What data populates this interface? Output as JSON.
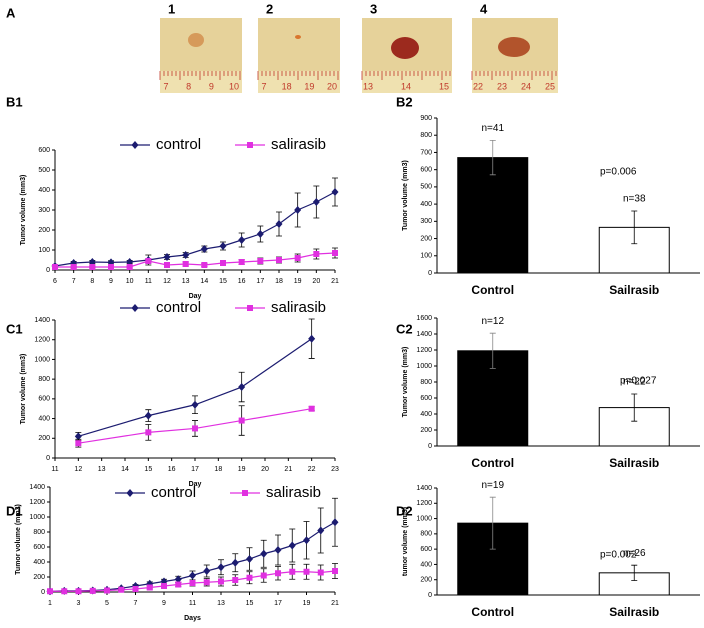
{
  "panel_a": {
    "label": "A",
    "photos": [
      {
        "label": "1",
        "ruler": [
          "7",
          "8",
          "9",
          "10"
        ]
      },
      {
        "label": "2",
        "ruler": [
          "7",
          "18",
          "19",
          "20"
        ]
      },
      {
        "label": "3",
        "ruler": [
          "13",
          "14",
          "15"
        ]
      },
      {
        "label": "4",
        "ruler": [
          "22",
          "23",
          "24",
          "25"
        ]
      }
    ]
  },
  "chart_data": [
    {
      "type": "line",
      "panel": "B1",
      "xlabel": "Day",
      "ylabel": "Tumor volume (mm3)",
      "x": [
        6,
        7,
        8,
        9,
        10,
        11,
        12,
        13,
        14,
        15,
        16,
        17,
        18,
        19,
        20,
        21
      ],
      "xlim": [
        6,
        21
      ],
      "xticks": [
        6,
        7,
        8,
        9,
        10,
        11,
        12,
        13,
        14,
        15,
        16,
        17,
        18,
        19,
        20,
        21
      ],
      "ylim": [
        0,
        600
      ],
      "yticks": [
        0,
        100,
        200,
        300,
        400,
        500,
        600
      ],
      "series": [
        {
          "name": "control",
          "color": "#1c1c70",
          "marker": "diamond",
          "values": [
            20,
            35,
            40,
            38,
            40,
            50,
            65,
            75,
            105,
            120,
            150,
            180,
            230,
            300,
            340,
            390
          ],
          "errors": [
            5,
            8,
            8,
            8,
            8,
            25,
            12,
            12,
            15,
            20,
            35,
            40,
            60,
            85,
            80,
            70
          ]
        },
        {
          "name": "salirasib",
          "color": "#e030e0",
          "marker": "square",
          "values": [
            15,
            15,
            15,
            15,
            15,
            45,
            25,
            30,
            25,
            35,
            40,
            45,
            50,
            60,
            80,
            85
          ],
          "errors": [
            5,
            5,
            5,
            5,
            5,
            10,
            8,
            10,
            8,
            10,
            12,
            15,
            15,
            20,
            25,
            25
          ]
        }
      ]
    },
    {
      "type": "bar",
      "panel": "B2",
      "ylabel": "Tumor volume (mm3)",
      "categories": [
        "Control",
        "Sailrasib"
      ],
      "values": [
        670,
        265
      ],
      "errors": [
        100,
        95
      ],
      "colors": [
        "#000000",
        "#ffffff"
      ],
      "annotations": [
        "n=41",
        "n=38"
      ],
      "p_value": "p=0.006",
      "ylim": [
        0,
        900
      ],
      "yticks": [
        0,
        100,
        200,
        300,
        400,
        500,
        600,
        700,
        800,
        900
      ]
    },
    {
      "type": "line",
      "panel": "C1",
      "xlabel": "Day",
      "ylabel": "Tumor volume (mm3)",
      "x": [
        12,
        15,
        17,
        19,
        22
      ],
      "xlim": [
        11,
        23
      ],
      "xticks": [
        11,
        12,
        13,
        14,
        15,
        16,
        17,
        18,
        19,
        20,
        21,
        22,
        23
      ],
      "ylim": [
        0,
        1400
      ],
      "yticks": [
        0,
        200,
        400,
        600,
        800,
        1000,
        1200,
        1400
      ],
      "series": [
        {
          "name": "control",
          "color": "#1c1c70",
          "marker": "diamond",
          "values": [
            220,
            430,
            540,
            720,
            1210
          ],
          "errors": [
            40,
            60,
            90,
            150,
            200
          ]
        },
        {
          "name": "salirasib",
          "color": "#e030e0",
          "marker": "square",
          "values": [
            150,
            260,
            300,
            380,
            500
          ],
          "errors": [
            40,
            80,
            80,
            150,
            20
          ]
        }
      ]
    },
    {
      "type": "bar",
      "panel": "C2",
      "ylabel": "Tumor volume (mm3)",
      "categories": [
        "Control",
        "Sailrasib"
      ],
      "values": [
        1190,
        480
      ],
      "errors": [
        220,
        170
      ],
      "colors": [
        "#000000",
        "#ffffff"
      ],
      "annotations": [
        "n=12",
        "n=22"
      ],
      "p_value": "p=0.027",
      "ylim": [
        0,
        1600
      ],
      "yticks": [
        0,
        200,
        400,
        600,
        800,
        1000,
        1200,
        1400,
        1600
      ]
    },
    {
      "type": "line",
      "panel": "D1",
      "xlabel": "Days",
      "ylabel": "Tumor volume (mm3)",
      "x": [
        1,
        2,
        3,
        4,
        5,
        6,
        7,
        8,
        9,
        10,
        11,
        12,
        13,
        14,
        15,
        16,
        17,
        18,
        19,
        20,
        21
      ],
      "xlim": [
        1,
        21
      ],
      "xticks": [
        1,
        3,
        5,
        7,
        9,
        11,
        13,
        15,
        17,
        19,
        21
      ],
      "ylim": [
        0,
        1400
      ],
      "yticks": [
        0,
        200,
        400,
        600,
        800,
        1000,
        1200,
        1400
      ],
      "series": [
        {
          "name": "control",
          "color": "#1c1c70",
          "marker": "diamond",
          "values": [
            10,
            15,
            15,
            20,
            30,
            50,
            80,
            110,
            140,
            170,
            220,
            280,
            330,
            390,
            440,
            510,
            560,
            620,
            690,
            820,
            930
          ],
          "errors": [
            5,
            5,
            5,
            10,
            10,
            15,
            20,
            25,
            30,
            40,
            60,
            80,
            100,
            120,
            150,
            180,
            200,
            220,
            250,
            300,
            320
          ]
        },
        {
          "name": "salirasib",
          "color": "#e030e0",
          "marker": "square",
          "values": [
            10,
            10,
            10,
            15,
            20,
            30,
            40,
            60,
            80,
            100,
            120,
            130,
            140,
            160,
            190,
            220,
            250,
            270,
            270,
            260,
            280
          ],
          "errors": [
            5,
            5,
            5,
            5,
            5,
            10,
            10,
            20,
            25,
            30,
            40,
            50,
            60,
            70,
            80,
            90,
            90,
            100,
            100,
            100,
            100
          ]
        }
      ]
    },
    {
      "type": "bar",
      "panel": "D2",
      "ylabel": "tumor volume (mm3)",
      "categories": [
        "Control",
        "Sailrasib"
      ],
      "values": [
        940,
        290
      ],
      "errors": [
        340,
        100
      ],
      "colors": [
        "#000000",
        "#ffffff"
      ],
      "annotations": [
        "n=19",
        "n=26"
      ],
      "p_value": "p=0.002",
      "ylim": [
        0,
        1400
      ],
      "yticks": [
        0,
        200,
        400,
        600,
        800,
        1000,
        1200,
        1400
      ]
    }
  ]
}
